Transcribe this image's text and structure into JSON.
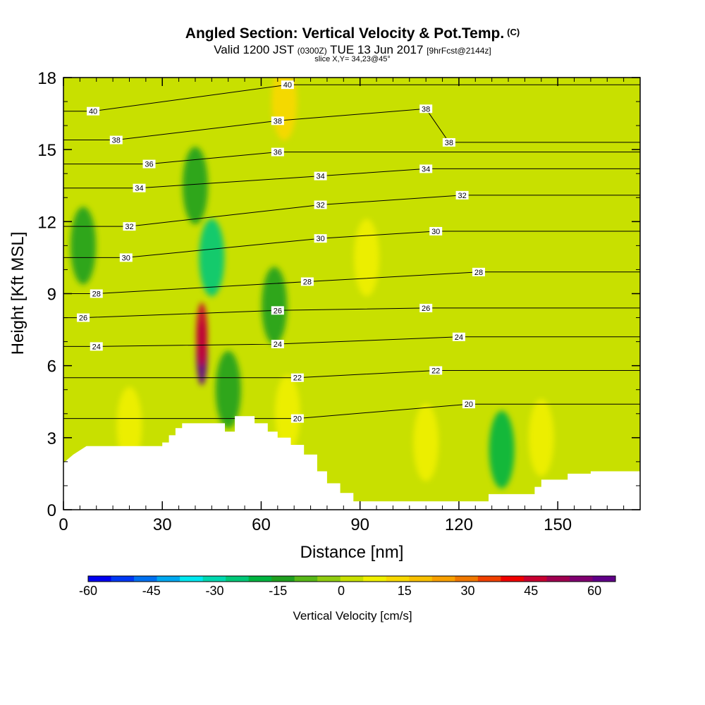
{
  "header": {
    "title": "Angled Section: Vertical Velocity & Pot.Temp.",
    "title_unit": "(C)",
    "valid_prefix": "Valid 1200 JST",
    "valid_utc": "(0300Z)",
    "valid_date": "TUE 13 Jun 2017",
    "forecast": "[9hrFcst@2144z]",
    "slice": "slice X,Y= 34,23@45°"
  },
  "chart_data": {
    "type": "heatmap",
    "xlabel": "Distance [nm]",
    "ylabel": "Height [Kft MSL]",
    "xlim": [
      0,
      175
    ],
    "ylim": [
      0,
      18
    ],
    "x_ticks": [
      0,
      30,
      60,
      90,
      120,
      150
    ],
    "y_ticks": [
      0,
      3,
      6,
      9,
      12,
      15,
      18
    ],
    "colorbar": {
      "title": "Vertical Velocity [cm/s]",
      "range": [
        -60,
        65
      ],
      "tick_values": [
        -60,
        -45,
        -30,
        -15,
        0,
        15,
        30,
        45,
        60
      ],
      "colors": [
        "#0000f0",
        "#0038f4",
        "#0070f0",
        "#00a8f0",
        "#00e8f0",
        "#00d8b0",
        "#00c878",
        "#00b440",
        "#20a020",
        "#58b818",
        "#90cc10",
        "#c8e000",
        "#f0f000",
        "#f8d800",
        "#f8c000",
        "#f8a000",
        "#f07800",
        "#f04000",
        "#f00000",
        "#c80030",
        "#a00050",
        "#800070",
        "#600088"
      ]
    },
    "terrain_kft": [
      [
        0,
        1.95
      ],
      [
        3,
        2.3
      ],
      [
        7,
        2.65
      ],
      [
        30,
        2.65
      ],
      [
        30,
        2.8
      ],
      [
        32,
        2.8
      ],
      [
        32,
        3.1
      ],
      [
        34,
        3.1
      ],
      [
        34,
        3.4
      ],
      [
        36,
        3.4
      ],
      [
        36,
        3.6
      ],
      [
        49,
        3.6
      ],
      [
        49,
        3.25
      ],
      [
        52,
        3.25
      ],
      [
        52,
        3.9
      ],
      [
        58,
        3.9
      ],
      [
        58,
        3.6
      ],
      [
        62,
        3.6
      ],
      [
        62,
        3.25
      ],
      [
        65,
        3.25
      ],
      [
        65,
        3.0
      ],
      [
        69,
        3.0
      ],
      [
        69,
        2.7
      ],
      [
        73,
        2.7
      ],
      [
        73,
        2.3
      ],
      [
        77,
        2.3
      ],
      [
        77,
        1.6
      ],
      [
        80,
        1.6
      ],
      [
        80,
        1.1
      ],
      [
        84,
        1.1
      ],
      [
        84,
        0.7
      ],
      [
        88,
        0.7
      ],
      [
        88,
        0.35
      ],
      [
        129,
        0.35
      ],
      [
        129,
        0.65
      ],
      [
        143,
        0.65
      ],
      [
        143,
        0.95
      ],
      [
        145,
        0.95
      ],
      [
        145,
        1.25
      ],
      [
        153,
        1.25
      ],
      [
        153,
        1.5
      ],
      [
        160,
        1.5
      ],
      [
        160,
        1.6
      ],
      [
        175,
        1.6
      ]
    ],
    "velocity_cells": [
      {
        "x": 42,
        "y": 6.5,
        "value": 60
      },
      {
        "x": 42,
        "y": 7.3,
        "value": 45
      },
      {
        "x": 45,
        "y": 10.5,
        "value": -25
      },
      {
        "x": 40,
        "y": 13.5,
        "value": -12
      },
      {
        "x": 6,
        "y": 11.0,
        "value": -15
      },
      {
        "x": 50,
        "y": 5.0,
        "value": -15
      },
      {
        "x": 64,
        "y": 8.5,
        "value": -12
      },
      {
        "x": 133,
        "y": 2.5,
        "value": -18
      },
      {
        "x": 20,
        "y": 3.5,
        "value": 8
      },
      {
        "x": 68,
        "y": 4.0,
        "value": 10
      },
      {
        "x": 67,
        "y": 17.0,
        "value": 12
      },
      {
        "x": 92,
        "y": 10.5,
        "value": 8
      },
      {
        "x": 110,
        "y": 2.8,
        "value": 6
      },
      {
        "x": 145,
        "y": 3.0,
        "value": 6
      }
    ],
    "isotherm_labels": [
      {
        "x": 9,
        "y": 16.6,
        "value": "40"
      },
      {
        "x": 68,
        "y": 17.7,
        "value": "40"
      },
      {
        "x": 16,
        "y": 15.4,
        "value": "38"
      },
      {
        "x": 65,
        "y": 16.2,
        "value": "38"
      },
      {
        "x": 110,
        "y": 16.7,
        "value": "38"
      },
      {
        "x": 117,
        "y": 15.3,
        "value": "38"
      },
      {
        "x": 26,
        "y": 14.4,
        "value": "36"
      },
      {
        "x": 65,
        "y": 14.9,
        "value": "36"
      },
      {
        "x": 23,
        "y": 13.4,
        "value": "34"
      },
      {
        "x": 78,
        "y": 13.9,
        "value": "34"
      },
      {
        "x": 110,
        "y": 14.2,
        "value": "34"
      },
      {
        "x": 20,
        "y": 11.8,
        "value": "32"
      },
      {
        "x": 78,
        "y": 12.7,
        "value": "32"
      },
      {
        "x": 121,
        "y": 13.1,
        "value": "32"
      },
      {
        "x": 19,
        "y": 10.5,
        "value": "30"
      },
      {
        "x": 78,
        "y": 11.3,
        "value": "30"
      },
      {
        "x": 113,
        "y": 11.6,
        "value": "30"
      },
      {
        "x": 10,
        "y": 9.0,
        "value": "28"
      },
      {
        "x": 74,
        "y": 9.5,
        "value": "28"
      },
      {
        "x": 126,
        "y": 9.9,
        "value": "28"
      },
      {
        "x": 6,
        "y": 8.0,
        "value": "26"
      },
      {
        "x": 65,
        "y": 8.3,
        "value": "26"
      },
      {
        "x": 110,
        "y": 8.4,
        "value": "26"
      },
      {
        "x": 10,
        "y": 6.8,
        "value": "24"
      },
      {
        "x": 65,
        "y": 6.9,
        "value": "24"
      },
      {
        "x": 120,
        "y": 7.2,
        "value": "24"
      },
      {
        "x": 71,
        "y": 5.5,
        "value": "22"
      },
      {
        "x": 113,
        "y": 5.8,
        "value": "22"
      },
      {
        "x": 71,
        "y": 3.8,
        "value": "20"
      },
      {
        "x": 123,
        "y": 4.4,
        "value": "20"
      }
    ]
  }
}
